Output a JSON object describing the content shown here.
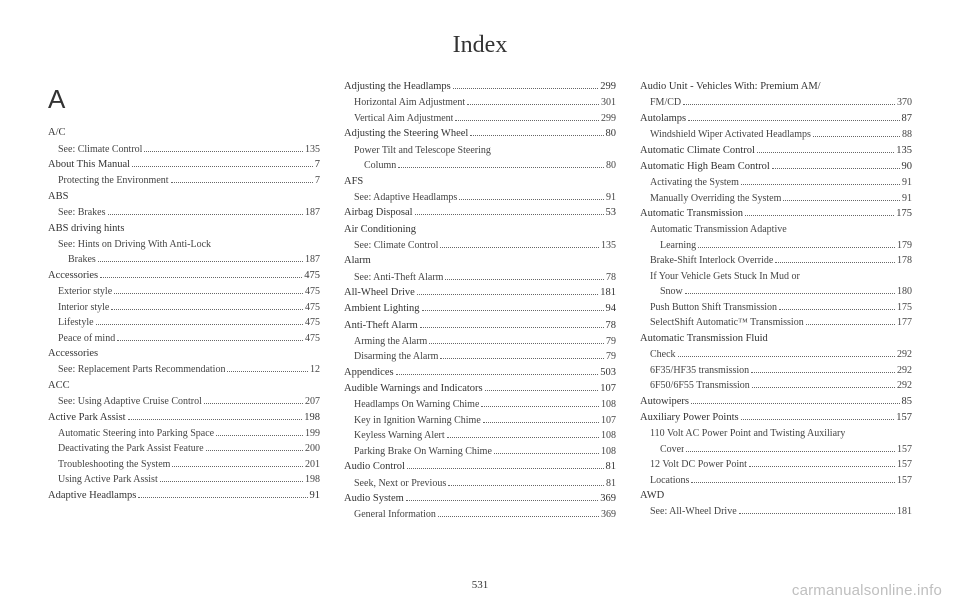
{
  "title": "Index",
  "pageNumber": "531",
  "watermark": "carmanualsonline.info",
  "letterHeading": "A",
  "columns": [
    [
      {
        "t": "main",
        "label": "A/C",
        "page": ""
      },
      {
        "t": "sub",
        "label": "See: Climate Control",
        "page": "135"
      },
      {
        "t": "main",
        "label": "About This Manual",
        "page": "7"
      },
      {
        "t": "sub",
        "label": "Protecting the Environment",
        "page": "7"
      },
      {
        "t": "main",
        "label": "ABS",
        "page": ""
      },
      {
        "t": "sub",
        "label": "See: Brakes",
        "page": "187"
      },
      {
        "t": "main",
        "label": "ABS driving hints",
        "page": ""
      },
      {
        "t": "sub",
        "label": "See: Hints on Driving With Anti-Lock",
        "page": ""
      },
      {
        "t": "sub2",
        "label": "Brakes",
        "page": "187"
      },
      {
        "t": "main",
        "label": "Accessories",
        "page": "475"
      },
      {
        "t": "sub",
        "label": "Exterior style",
        "page": "475"
      },
      {
        "t": "sub",
        "label": "Interior style",
        "page": "475"
      },
      {
        "t": "sub",
        "label": "Lifestyle",
        "page": "475"
      },
      {
        "t": "sub",
        "label": "Peace of mind",
        "page": "475"
      },
      {
        "t": "main",
        "label": "Accessories",
        "page": ""
      },
      {
        "t": "sub",
        "label": "See: Replacement Parts Recommendation",
        "page": "12"
      },
      {
        "t": "main",
        "label": "ACC",
        "page": ""
      },
      {
        "t": "sub",
        "label": "See: Using Adaptive Cruise Control",
        "page": "207"
      },
      {
        "t": "main",
        "label": "Active Park Assist",
        "page": "198"
      },
      {
        "t": "sub",
        "label": "Automatic Steering into Parking Space",
        "page": "199"
      },
      {
        "t": "sub",
        "label": "Deactivating the Park Assist Feature",
        "page": "200"
      },
      {
        "t": "sub",
        "label": "Troubleshooting the System",
        "page": "201"
      },
      {
        "t": "sub",
        "label": "Using Active Park Assist",
        "page": "198"
      },
      {
        "t": "main",
        "label": "Adaptive Headlamps",
        "page": "91"
      }
    ],
    [
      {
        "t": "main",
        "label": "Adjusting the Headlamps",
        "page": "299"
      },
      {
        "t": "sub",
        "label": "Horizontal Aim Adjustment",
        "page": "301"
      },
      {
        "t": "sub",
        "label": "Vertical Aim Adjustment",
        "page": "299"
      },
      {
        "t": "main",
        "label": "Adjusting the Steering Wheel",
        "page": "80"
      },
      {
        "t": "sub",
        "label": "Power Tilt and Telescope Steering",
        "page": ""
      },
      {
        "t": "sub2",
        "label": "Column",
        "page": "80"
      },
      {
        "t": "main",
        "label": "AFS",
        "page": ""
      },
      {
        "t": "sub",
        "label": "See: Adaptive Headlamps",
        "page": "91"
      },
      {
        "t": "main",
        "label": "Airbag Disposal",
        "page": "53"
      },
      {
        "t": "main",
        "label": "Air Conditioning",
        "page": ""
      },
      {
        "t": "sub",
        "label": "See: Climate Control",
        "page": "135"
      },
      {
        "t": "main",
        "label": "Alarm",
        "page": ""
      },
      {
        "t": "sub",
        "label": "See: Anti-Theft Alarm",
        "page": "78"
      },
      {
        "t": "main",
        "label": "All-Wheel Drive",
        "page": "181"
      },
      {
        "t": "main",
        "label": "Ambient Lighting",
        "page": "94"
      },
      {
        "t": "main",
        "label": "Anti-Theft Alarm",
        "page": "78"
      },
      {
        "t": "sub",
        "label": "Arming the Alarm",
        "page": "79"
      },
      {
        "t": "sub",
        "label": "Disarming the Alarm",
        "page": "79"
      },
      {
        "t": "main",
        "label": "Appendices",
        "page": "503"
      },
      {
        "t": "main",
        "label": "Audible Warnings and Indicators",
        "page": "107"
      },
      {
        "t": "sub",
        "label": "Headlamps On Warning Chime",
        "page": "108"
      },
      {
        "t": "sub",
        "label": "Key in Ignition Warning Chime",
        "page": "107"
      },
      {
        "t": "sub",
        "label": "Keyless Warning Alert",
        "page": "108"
      },
      {
        "t": "sub",
        "label": "Parking Brake On Warning Chime",
        "page": "108"
      },
      {
        "t": "main",
        "label": "Audio Control",
        "page": "81"
      },
      {
        "t": "sub",
        "label": "Seek, Next or Previous",
        "page": "81"
      },
      {
        "t": "main",
        "label": "Audio System",
        "page": "369"
      },
      {
        "t": "sub",
        "label": "General Information",
        "page": "369"
      }
    ],
    [
      {
        "t": "main",
        "label": "Audio Unit - Vehicles With: Premium AM/",
        "page": ""
      },
      {
        "t": "sub",
        "label": "FM/CD",
        "page": "370"
      },
      {
        "t": "main",
        "label": "Autolamps",
        "page": "87"
      },
      {
        "t": "sub",
        "label": "Windshield Wiper Activated Headlamps",
        "page": "88"
      },
      {
        "t": "main",
        "label": "Automatic Climate Control",
        "page": "135"
      },
      {
        "t": "main",
        "label": "Automatic High Beam Control",
        "page": "90"
      },
      {
        "t": "sub",
        "label": "Activating the System",
        "page": "91"
      },
      {
        "t": "sub",
        "label": "Manually Overriding the System",
        "page": "91"
      },
      {
        "t": "main",
        "label": "Automatic Transmission",
        "page": "175"
      },
      {
        "t": "sub",
        "label": "Automatic Transmission Adaptive",
        "page": ""
      },
      {
        "t": "sub2",
        "label": "Learning",
        "page": "179"
      },
      {
        "t": "sub",
        "label": "Brake-Shift Interlock Override",
        "page": "178"
      },
      {
        "t": "sub",
        "label": "If Your Vehicle Gets Stuck In Mud or",
        "page": ""
      },
      {
        "t": "sub2",
        "label": "Snow",
        "page": "180"
      },
      {
        "t": "sub",
        "label": "Push Button Shift Transmission",
        "page": "175"
      },
      {
        "t": "sub",
        "label": "SelectShift Automatic™ Transmission",
        "page": "177"
      },
      {
        "t": "main",
        "label": "Automatic Transmission Fluid",
        "page": ""
      },
      {
        "t": "sub",
        "label": "Check",
        "page": "292"
      },
      {
        "t": "sub",
        "label": "6F35/HF35 transmission",
        "page": "292"
      },
      {
        "t": "sub",
        "label": "6F50/6F55 Transmission",
        "page": "292"
      },
      {
        "t": "main",
        "label": "Autowipers",
        "page": "85"
      },
      {
        "t": "main",
        "label": "Auxiliary Power Points",
        "page": "157"
      },
      {
        "t": "sub",
        "label": "110 Volt AC Power Point and Twisting Auxiliary",
        "page": ""
      },
      {
        "t": "sub2",
        "label": "Cover",
        "page": "157"
      },
      {
        "t": "sub",
        "label": "12 Volt DC Power Point",
        "page": "157"
      },
      {
        "t": "sub",
        "label": "Locations",
        "page": "157"
      },
      {
        "t": "main",
        "label": "AWD",
        "page": ""
      },
      {
        "t": "sub",
        "label": "See: All-Wheel Drive",
        "page": "181"
      }
    ]
  ]
}
